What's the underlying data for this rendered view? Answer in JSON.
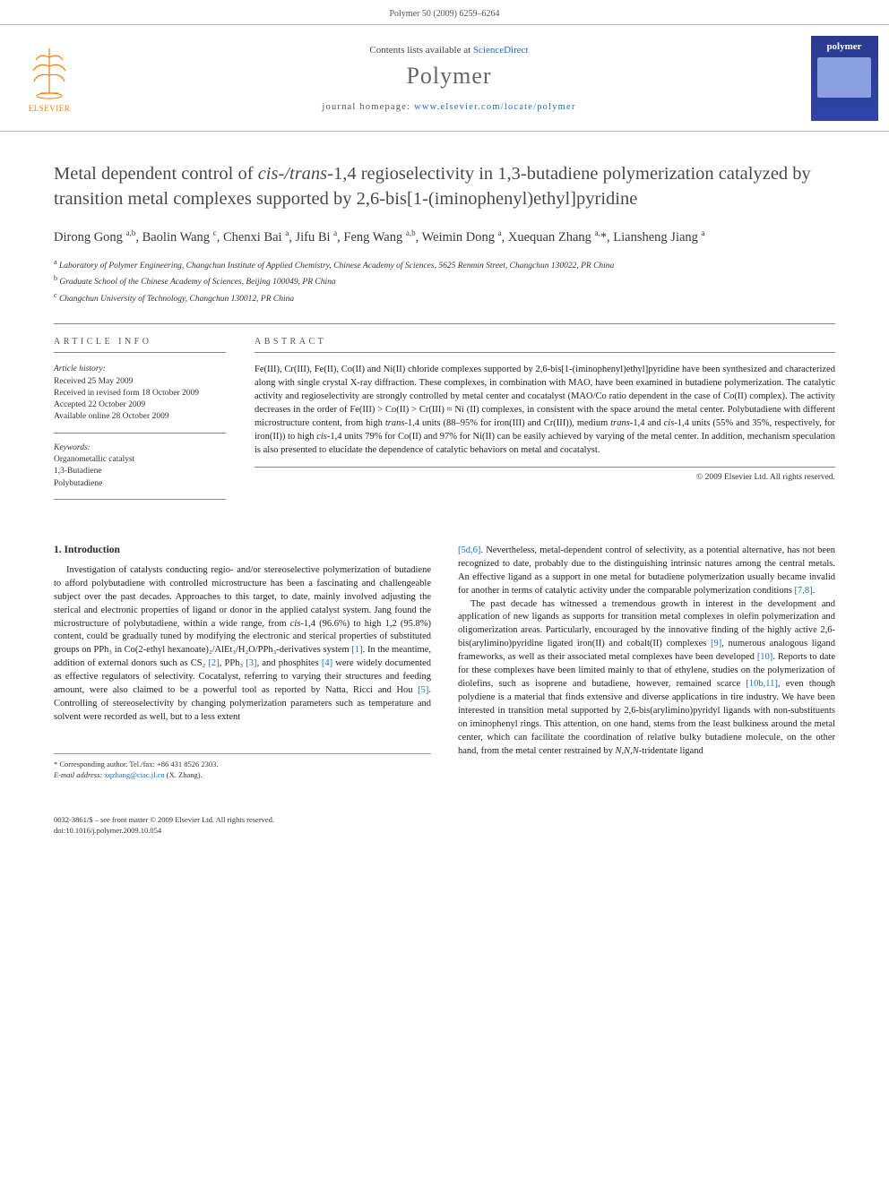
{
  "header": {
    "citation": "Polymer 50 (2009) 6259–6264"
  },
  "masthead": {
    "contents_prefix": "Contents lists available at ",
    "contents_link": "ScienceDirect",
    "journal_name": "Polymer",
    "homepage_prefix": "journal homepage: ",
    "homepage_link": "www.elsevier.com/locate/polymer",
    "publisher_label": "ELSEVIER",
    "cover_title": "polymer"
  },
  "title": {
    "line1_pre": "Metal dependent control of ",
    "line1_ital": "cis-/trans",
    "line1_post": "-1,4 regioselectivity in 1,3-butadiene polymerization catalyzed by transition metal complexes supported by 2,6-bis[1-(iminophenyl)ethyl]pyridine"
  },
  "authors_html": "Dirong Gong <sup>a,b</sup>, Baolin Wang <sup>c</sup>, Chenxi Bai <sup>a</sup>, Jifu Bi <sup>a</sup>, Feng Wang <sup>a,b</sup>, Weimin Dong <sup>a</sup>, Xuequan Zhang <sup>a,</sup>*, Liansheng Jiang <sup>a</sup>",
  "affiliations": [
    {
      "sup": "a",
      "text": "Laboratory of Polymer Engineering, Changchun Institute of Applied Chemistry, Chinese Academy of Sciences, 5625 Renmin Street, Changchun 130022, PR China"
    },
    {
      "sup": "b",
      "text": "Graduate School of the Chinese Academy of Sciences, Beijing 100049, PR China"
    },
    {
      "sup": "c",
      "text": "Changchun University of Technology, Changchun 130012, PR China"
    }
  ],
  "article_info": {
    "label": "ARTICLE INFO",
    "history_label": "Article history:",
    "received": "Received 25 May 2009",
    "revised": "Received in revised form 18 October 2009",
    "accepted": "Accepted 22 October 2009",
    "online": "Available online 28 October 2009",
    "keywords_label": "Keywords:",
    "kw1": "Organometallic catalyst",
    "kw2": "1,3-Butadiene",
    "kw3": "Polybutadiene"
  },
  "abstract": {
    "label": "ABSTRACT",
    "text": "Fe(III), Cr(III), Fe(II), Co(II) and Ni(II) chloride complexes supported by 2,6-bis[1-(iminophenyl)ethyl]pyridine have been synthesized and characterized along with single crystal X-ray diffraction. These complexes, in combination with MAO, have been examined in butadiene polymerization. The catalytic activity and regioselectivity are strongly controlled by metal center and cocatalyst (MAO/Co ratio dependent in the case of Co(II) complex). The activity decreases in the order of Fe(III) > Co(II) > Cr(III) ≈ Ni (II) complexes, in consistent with the space around the metal center. Polybutadiene with different microstructure content, from high trans-1,4 units (88–95% for iron(III) and Cr(III)), medium trans-1,4 and cis-1,4 units (55% and 35%, respectively, for iron(II)) to high cis-1,4 units 79% for Co(II) and 97% for Ni(II) can be easily achieved by varying of the metal center. In addition, mechanism speculation is also presented to elucidate the dependence of catalytic behaviors on metal and cocatalyst.",
    "copyright": "© 2009 Elsevier Ltd. All rights reserved."
  },
  "body": {
    "heading": "1. Introduction",
    "col1": "Investigation of catalysts conducting regio- and/or stereoselective polymerization of butadiene to afford polybutadiene with controlled microstructure has been a fascinating and challengeable subject over the past decades. Approaches to this target, to date, mainly involved adjusting the sterical and electronic properties of ligand or donor in the applied catalyst system. Jang found the microstructure of polybutadiene, within a wide range, from cis-1,4 (96.6%) to high 1,2 (95.8%) content, could be gradually tuned by modifying the electronic and sterical properties of substituted groups on PPh₃ in Co(2-ethyl hexanoate)₂/AlEt₃/H₂O/PPh₃-derivatives system [1]. In the meantime, addition of external donors such as CS₂ [2], PPh₃ [3], and phosphites [4] were widely documented as effective regulators of selectivity. Cocatalyst, referring to varying their structures and feeding amount, were also claimed to be a powerful tool as reported by Natta, Ricci and Hou [5]. Controlling of stereoselectivity by changing polymerization parameters such as temperature and solvent were recorded as well, but to a less extent",
    "col2": "[5d,6]. Nevertheless, metal-dependent control of selectivity, as a potential alternative, has not been recognized to date, probably due to the distinguishing intrinsic natures among the central metals. An effective ligand as a support in one metal for butadiene polymerization usually became invalid for another in terms of catalytic activity under the comparable polymerization conditions [7,8].",
    "col2b": "The past decade has witnessed a tremendous growth in interest in the development and application of new ligands as supports for transition metal complexes in olefin polymerization and oligomerization areas. Particularly, encouraged by the innovative finding of the highly active 2,6-bis(arylimino)pyridine ligated iron(II) and cobalt(II) complexes [9], numerous analogous ligand frameworks, as well as their associated metal complexes have been developed [10]. Reports to date for these complexes have been limited mainly to that of ethylene, studies on the polymerization of diolefins, such as isoprene and butadiene, however, remained scarce [10b,11], even though polydiene is a material that finds extensive and diverse applications in tire industry. We have been interested in transition metal supported by 2,6-bis(arylimino)pyridyl ligands with non-substituents on iminophenyl rings. This attention, on one hand, stems from the least bulkiness around the metal center, which can facilitate the coordination of relative bulky butadiene molecule, on the other hand, from the metal center restrained by N,N,N-tridentate ligand"
  },
  "footnotes": {
    "corr_label": "* Corresponding author. Tel./fax: +86 431 8526 2303.",
    "email_label": "E-mail address:",
    "email": "xqzhang@ciac.jl.cn",
    "email_suffix": "(X. Zhang)."
  },
  "footer": {
    "line1": "0032-3861/$ – see front matter © 2009 Elsevier Ltd. All rights reserved.",
    "line2": "doi:10.1016/j.polymer.2009.10.054"
  },
  "colors": {
    "link": "#1a6ec1",
    "elsevier_orange": "#ff7a00",
    "cover_blue": "#2a3a8f"
  }
}
